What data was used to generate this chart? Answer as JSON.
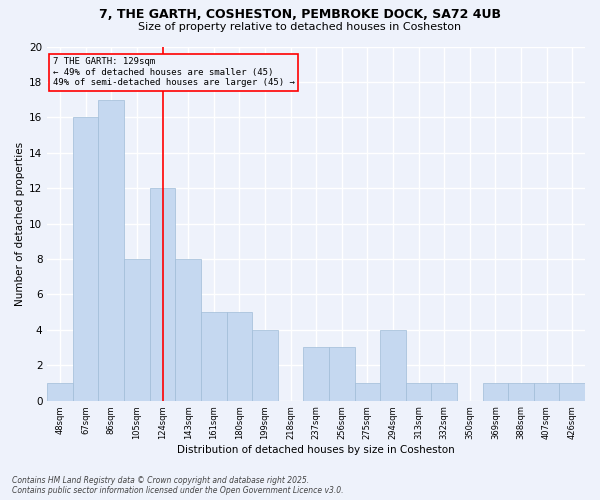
{
  "title1": "7, THE GARTH, COSHESTON, PEMBROKE DOCK, SA72 4UB",
  "title2": "Size of property relative to detached houses in Cosheston",
  "xlabel": "Distribution of detached houses by size in Cosheston",
  "ylabel": "Number of detached properties",
  "categories": [
    "48sqm",
    "67sqm",
    "86sqm",
    "105sqm",
    "124sqm",
    "143sqm",
    "161sqm",
    "180sqm",
    "199sqm",
    "218sqm",
    "237sqm",
    "256sqm",
    "275sqm",
    "294sqm",
    "313sqm",
    "332sqm",
    "350sqm",
    "369sqm",
    "388sqm",
    "407sqm",
    "426sqm"
  ],
  "values": [
    1,
    16,
    17,
    8,
    12,
    8,
    5,
    5,
    4,
    0,
    3,
    3,
    1,
    4,
    1,
    1,
    0,
    1,
    1,
    1,
    1
  ],
  "bar_color": "#c5d8f0",
  "bar_edge_color": "#a0bcd8",
  "background_color": "#eef2fb",
  "grid_color": "#ffffff",
  "vline_x_index": 4,
  "vline_color": "red",
  "annotation_text": "7 THE GARTH: 129sqm\n← 49% of detached houses are smaller (45)\n49% of semi-detached houses are larger (45) →",
  "footer": "Contains HM Land Registry data © Crown copyright and database right 2025.\nContains public sector information licensed under the Open Government Licence v3.0.",
  "ylim": [
    0,
    20
  ],
  "yticks": [
    0,
    2,
    4,
    6,
    8,
    10,
    12,
    14,
    16,
    18,
    20
  ]
}
